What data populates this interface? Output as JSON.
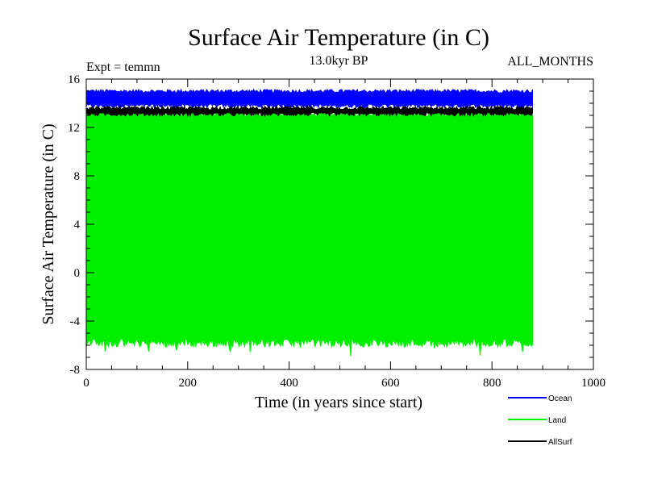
{
  "chart_data": {
    "type": "area",
    "title": "Surface Air Temperature (in C)",
    "subtitle": "13.0kyr BP",
    "annotation_left": "Expt = temmn",
    "annotation_right": "ALL_MONTHS",
    "xlabel": "Time (in years since start)",
    "ylabel": "Surface Air Temperature (in C)",
    "xlim": [
      0,
      1000
    ],
    "ylim": [
      -8,
      16
    ],
    "x_ticks": [
      0,
      200,
      400,
      600,
      800,
      1000
    ],
    "y_ticks": [
      -8,
      -4,
      0,
      4,
      8,
      12,
      16
    ],
    "data_x_range": [
      0,
      880
    ],
    "series": [
      {
        "name": "Land",
        "color": "#00ee00",
        "band_min": -5.8,
        "band_max": 13.2,
        "low_extreme": -7.0,
        "noise_amplitude": 0.35
      },
      {
        "name": "Ocean",
        "color": "#0000ff",
        "band_min": 13.8,
        "band_max": 15.0,
        "noise_amplitude": 0.15
      },
      {
        "name": "AllSurf",
        "color": "#000000",
        "band_min": 13.1,
        "band_max": 13.6,
        "noise_amplitude": 0.15
      }
    ],
    "legend_order": [
      "Ocean",
      "Land",
      "AllSurf"
    ],
    "legend_position": "bottom-right"
  }
}
